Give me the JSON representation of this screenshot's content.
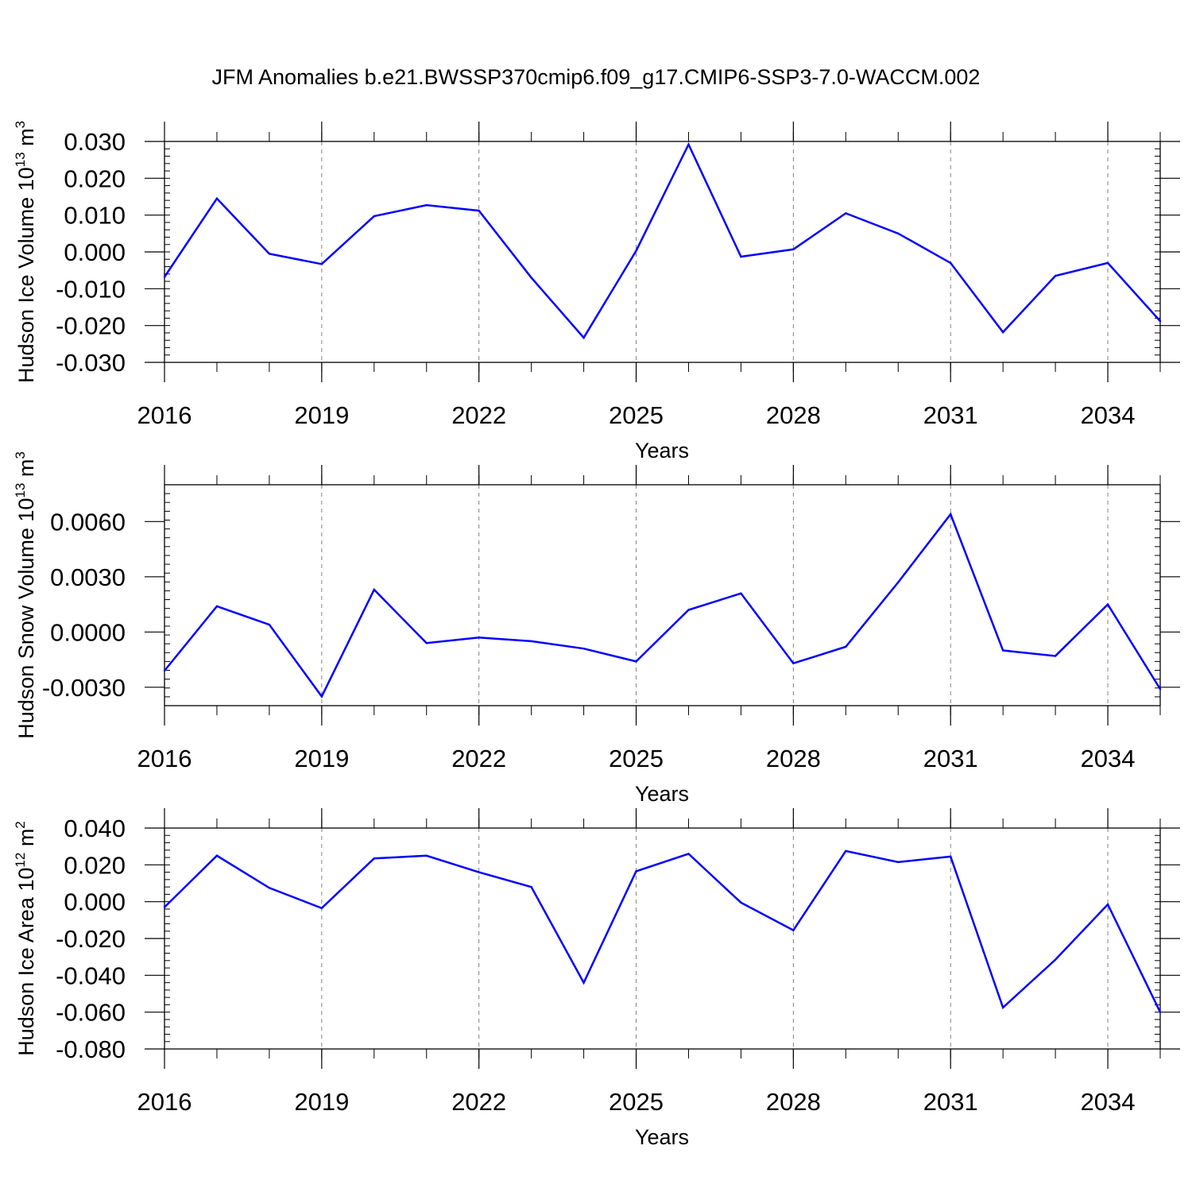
{
  "title": "JFM Anomalies b.e21.BWSSP370cmip6.f09_g17.CMIP6-SSP3-7.0-WACCM.002",
  "colors": {
    "line": "#0000ff",
    "axes": "#000000",
    "grid": "#808080"
  },
  "chart_data": [
    {
      "type": "line",
      "xlabel": "Years",
      "ylabel": {
        "text": "Hudson Ice Volume 10",
        "exp": "13",
        "unit": " m",
        "unit_exp": "3"
      },
      "x": [
        2016,
        2017,
        2018,
        2019,
        2020,
        2021,
        2022,
        2023,
        2024,
        2025,
        2026,
        2027,
        2028,
        2029,
        2030,
        2031,
        2032,
        2033,
        2034,
        2035
      ],
      "values": [
        -0.0068,
        0.0145,
        -0.0005,
        -0.0033,
        0.0097,
        0.0127,
        0.0112,
        -0.007,
        -0.0233,
        0.0003,
        0.0292,
        -0.0013,
        0.0007,
        0.0105,
        0.005,
        -0.003,
        -0.0218,
        -0.0065,
        -0.003,
        -0.0188
      ],
      "xlim": [
        2016,
        2035
      ],
      "ylim": [
        -0.03,
        0.03
      ],
      "xticks": [
        "2016",
        "2019",
        "2022",
        "2025",
        "2028",
        "2031",
        "2034"
      ],
      "yticks": [
        "-0.030",
        "-0.020",
        "-0.010",
        "0.000",
        "0.010",
        "0.020",
        "0.030"
      ],
      "grid": "vertical dashed at major x ticks"
    },
    {
      "type": "line",
      "xlabel": "Years",
      "ylabel": {
        "text": "Hudson Snow Volume 10",
        "exp": "13",
        "unit": " m",
        "unit_exp": "3"
      },
      "x": [
        2016,
        2017,
        2018,
        2019,
        2020,
        2021,
        2022,
        2023,
        2024,
        2025,
        2026,
        2027,
        2028,
        2029,
        2030,
        2031,
        2032,
        2033,
        2034,
        2035
      ],
      "values": [
        -0.0021,
        0.0014,
        0.0004,
        -0.0035,
        0.0023,
        -0.0006,
        -0.0003,
        -0.0005,
        -0.0009,
        -0.0016,
        0.0012,
        0.0021,
        -0.0017,
        -0.0008,
        0.0027,
        0.0064,
        -0.001,
        -0.0013,
        0.0015,
        -0.0031
      ],
      "xlim": [
        2016,
        2035
      ],
      "ylim": [
        -0.004,
        0.008
      ],
      "xticks": [
        "2016",
        "2019",
        "2022",
        "2025",
        "2028",
        "2031",
        "2034"
      ],
      "yticks": [
        "-0.0030",
        "0.0000",
        "0.0030",
        "0.0060"
      ],
      "grid": "vertical dashed at major x ticks"
    },
    {
      "type": "line",
      "xlabel": "Years",
      "ylabel": {
        "text": "Hudson Ice Area 10",
        "exp": "12",
        "unit": " m",
        "unit_exp": "2"
      },
      "x": [
        2016,
        2017,
        2018,
        2019,
        2020,
        2021,
        2022,
        2023,
        2024,
        2025,
        2026,
        2027,
        2028,
        2029,
        2030,
        2031,
        2032,
        2033,
        2034,
        2035
      ],
      "values": [
        -0.003,
        0.025,
        0.0075,
        -0.0035,
        0.0235,
        0.025,
        0.016,
        0.008,
        -0.044,
        0.0165,
        0.026,
        -0.0005,
        -0.0155,
        0.0275,
        0.0215,
        0.0245,
        -0.0575,
        -0.0315,
        -0.0015,
        -0.06
      ],
      "xlim": [
        2016,
        2035
      ],
      "ylim": [
        -0.08,
        0.04
      ],
      "xticks": [
        "2016",
        "2019",
        "2022",
        "2025",
        "2028",
        "2031",
        "2034"
      ],
      "yticks": [
        "-0.080",
        "-0.060",
        "-0.040",
        "-0.020",
        "0.000",
        "0.020",
        "0.040"
      ],
      "grid": "vertical dashed at major x ticks"
    }
  ]
}
